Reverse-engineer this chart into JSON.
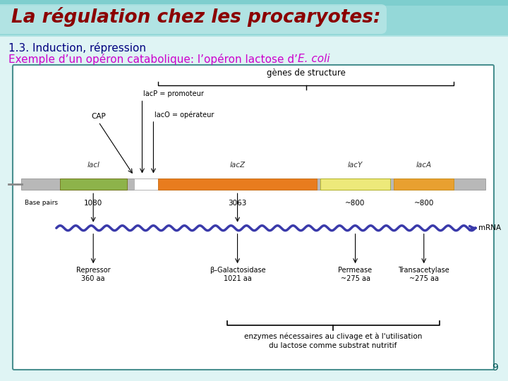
{
  "title": "La régulation chez les procaryotes:",
  "subtitle1": "1.3. Induction, répression",
  "subtitle2_normal": "Exemple d’un opéron catabolique: l’opéron lactose d’",
  "subtitle2_italic": "E. coli",
  "bg_color": "#dff4f4",
  "header_bg_top": "#7ecece",
  "title_color": "#8b0000",
  "subtitle1_color": "#000080",
  "subtitle2_color": "#cc00cc",
  "box_border_color": "#4a9090",
  "page_number": "9",
  "diagram_bg": "#ffffff",
  "gene_laci_color": "#8db34a",
  "gene_lacz_color": "#e87c1e",
  "gene_lacy_color": "#ede97a",
  "gene_laca_color": "#e8a030",
  "chromosome_color": "#b8b8b8",
  "mrna_color": "#3a3aaa",
  "label_color": "#000000"
}
